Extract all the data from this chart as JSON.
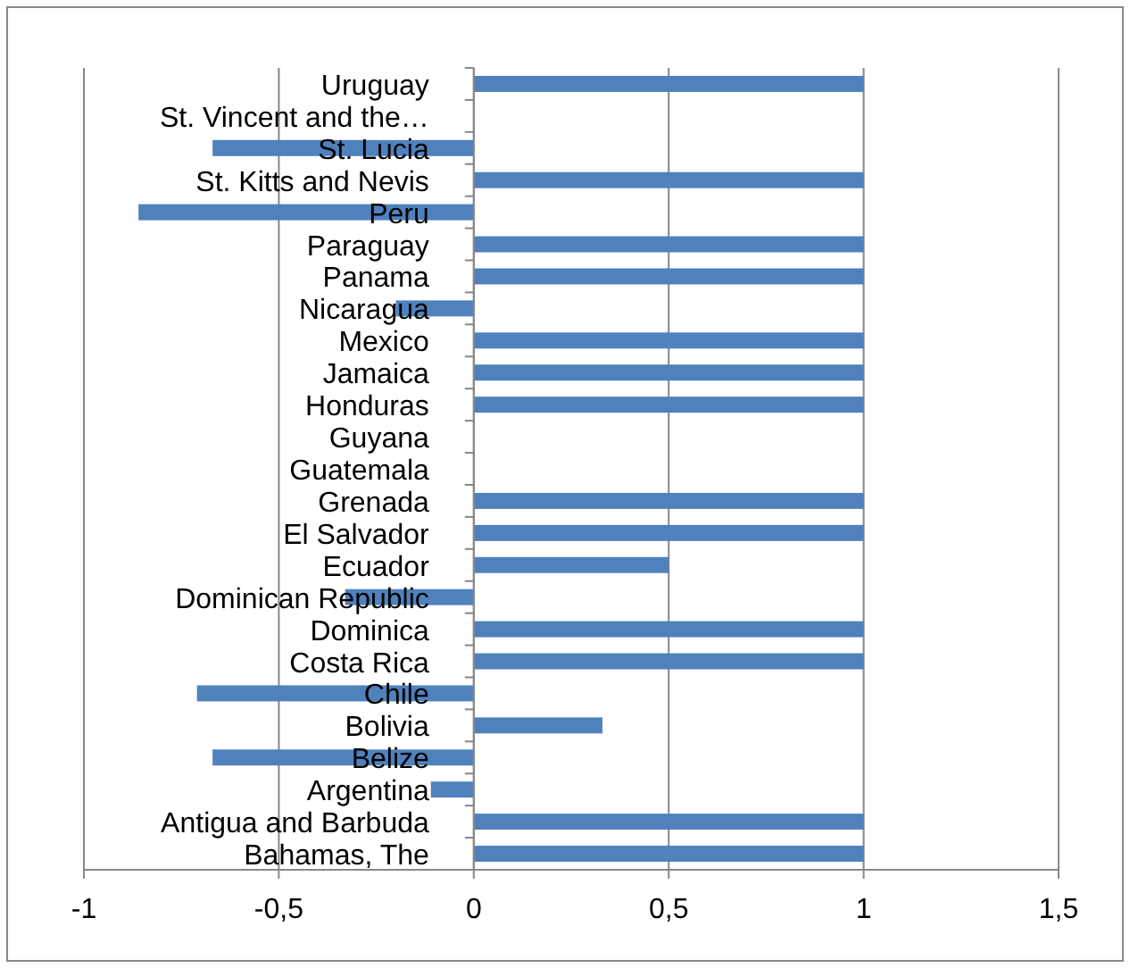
{
  "chart_data": {
    "type": "bar",
    "orientation": "horizontal",
    "categories": [
      "Uruguay",
      "St. Vincent and the…",
      "St. Lucia",
      "St. Kitts and Nevis",
      "Peru",
      "Paraguay",
      "Panama",
      "Nicaragua",
      "Mexico",
      "Jamaica",
      "Honduras",
      "Guyana",
      "Guatemala",
      "Grenada",
      "El Salvador",
      "Ecuador",
      "Dominican Republic",
      "Dominica",
      "Costa Rica",
      "Chile",
      "Bolivia",
      "Belize",
      "Argentina",
      "Antigua and Barbuda",
      "Bahamas, The"
    ],
    "values": [
      1,
      0,
      -0.67,
      1,
      -0.86,
      1,
      1,
      -0.2,
      1,
      1,
      1,
      0,
      0,
      1,
      1,
      0.5,
      -0.33,
      1,
      1,
      -0.71,
      0.33,
      -0.67,
      -0.11,
      1,
      1
    ],
    "color": "#4f81bd",
    "xlim": [
      -1,
      1.5
    ],
    "xticks": [
      -1,
      {
        "value": -0.5,
        "label": "-0,5"
      },
      0,
      {
        "value": 0.5,
        "label": "0,5"
      },
      1,
      {
        "value": 1.5,
        "label": "1,5"
      }
    ],
    "grid": "x"
  }
}
